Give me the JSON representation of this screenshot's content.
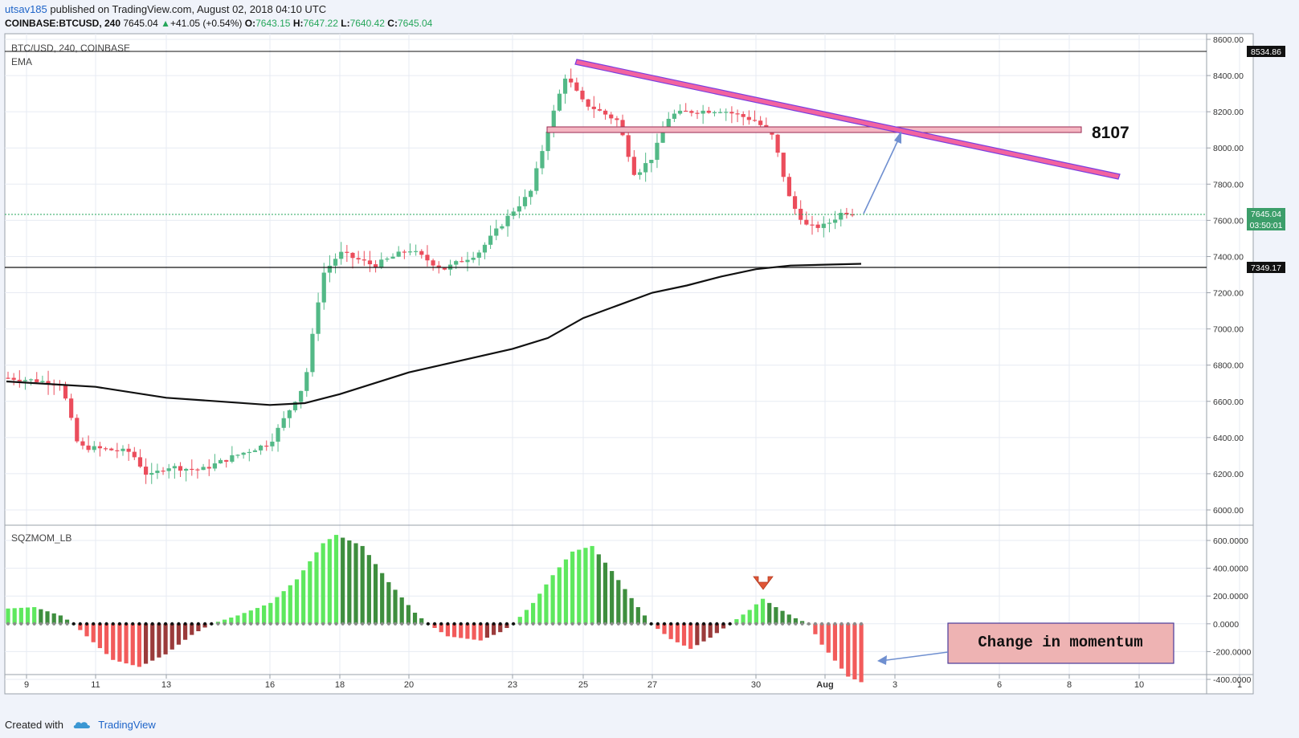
{
  "header": {
    "author": "utsav185",
    "published_text": "published on TradingView.com, August 02, 2018 04:10 UTC",
    "symbol_line": "COINBASE:BTCUSD, 240",
    "last": "7645.04",
    "change_arrow": "▲",
    "change": "+41.05 (+0.54%)",
    "o_label": "O:",
    "o": "7643.15",
    "h_label": "H:",
    "h": "7647.22",
    "l_label": "L:",
    "l": "7640.42",
    "c_label": "C:",
    "c": "7645.04"
  },
  "footer": {
    "created_with": "Created with",
    "brand": "TradingView"
  },
  "chart_data": [
    {
      "type": "candlestick",
      "title": "BTC/USD, 240, COINBASE",
      "indicator_label": "EMA",
      "ylim": [
        5950,
        8650
      ],
      "y_ticks": [
        "8600.00",
        "8400.00",
        "8200.00",
        "8000.00",
        "7800.00",
        "7600.00",
        "7400.00",
        "7200.00",
        "7000.00",
        "6800.00",
        "6600.00",
        "6400.00",
        "6200.00",
        "6000.00"
      ],
      "x_ticks": [
        "9",
        "11",
        "13",
        "16",
        "18",
        "20",
        "23",
        "25",
        "27",
        "30",
        "Aug",
        "3",
        "6",
        "8",
        "10",
        "1"
      ],
      "price_labels": {
        "resistance": "8534.86",
        "last": "7645.04",
        "countdown": "03:50:01",
        "support": "7349.17"
      },
      "annotation_level": "8107",
      "path_points": [
        [
          "9",
          6730
        ],
        [
          "10",
          6700
        ],
        [
          "10.5",
          6350
        ],
        [
          "11",
          6340
        ],
        [
          "12",
          6320
        ],
        [
          "12.5",
          6180
        ],
        [
          "13",
          6240
        ],
        [
          "14",
          6220
        ],
        [
          "15",
          6300
        ],
        [
          "16",
          6370
        ],
        [
          "17",
          6700
        ],
        [
          "17.5",
          7300
        ],
        [
          "18",
          7420
        ],
        [
          "19",
          7350
        ],
        [
          "20",
          7440
        ],
        [
          "21",
          7330
        ],
        [
          "22",
          7420
        ],
        [
          "23",
          7650
        ],
        [
          "23.5",
          7750
        ],
        [
          "24",
          8100
        ],
        [
          "24.5",
          8400
        ],
        [
          "25",
          8250
        ],
        [
          "26",
          8150
        ],
        [
          "26.5",
          7850
        ],
        [
          "27",
          7950
        ],
        [
          "27.5",
          8180
        ],
        [
          "28",
          8200
        ],
        [
          "29",
          8210
        ],
        [
          "30",
          8150
        ],
        [
          "30.5",
          8060
        ],
        [
          "31",
          7700
        ],
        [
          "31.5",
          7560
        ],
        [
          "Aug 1",
          7570
        ],
        [
          "Aug 1.5",
          7645
        ]
      ],
      "ema": [
        [
          "9",
          6710
        ],
        [
          "11",
          6680
        ],
        [
          "13",
          6620
        ],
        [
          "16",
          6580
        ],
        [
          "17",
          6590
        ],
        [
          "18",
          6640
        ],
        [
          "20",
          6760
        ],
        [
          "23",
          6890
        ],
        [
          "24",
          6950
        ],
        [
          "25",
          7060
        ],
        [
          "26",
          7130
        ],
        [
          "27",
          7200
        ],
        [
          "28",
          7240
        ],
        [
          "29",
          7290
        ],
        [
          "30",
          7330
        ],
        [
          "31",
          7350
        ],
        [
          "Aug 1",
          7360
        ]
      ]
    },
    {
      "type": "bar",
      "title": "SQZMOM_LB",
      "y_ticks": [
        "600.0000",
        "400.0000",
        "200.0000",
        "0.0000",
        "-200.0000",
        "-400.0000"
      ],
      "ylim": [
        -460,
        680
      ],
      "series_profile": [
        [
          0,
          110
        ],
        [
          4,
          120
        ],
        [
          8,
          60
        ],
        [
          10,
          0
        ],
        [
          12,
          -90
        ],
        [
          16,
          -260
        ],
        [
          20,
          -310
        ],
        [
          24,
          -220
        ],
        [
          28,
          -80
        ],
        [
          31,
          0
        ],
        [
          35,
          60
        ],
        [
          40,
          150
        ],
        [
          44,
          320
        ],
        [
          48,
          580
        ],
        [
          50,
          640
        ],
        [
          54,
          560
        ],
        [
          58,
          300
        ],
        [
          62,
          80
        ],
        [
          64,
          0
        ],
        [
          67,
          -90
        ],
        [
          72,
          -120
        ],
        [
          75,
          -60
        ],
        [
          77,
          0
        ],
        [
          80,
          150
        ],
        [
          83,
          350
        ],
        [
          86,
          520
        ],
        [
          89,
          560
        ],
        [
          92,
          380
        ],
        [
          96,
          120
        ],
        [
          98,
          0
        ],
        [
          101,
          -110
        ],
        [
          104,
          -180
        ],
        [
          107,
          -100
        ],
        [
          110,
          0
        ],
        [
          113,
          100
        ],
        [
          115,
          180
        ],
        [
          117,
          120
        ],
        [
          120,
          40
        ],
        [
          122,
          0
        ],
        [
          124,
          -150
        ],
        [
          128,
          -380
        ],
        [
          130,
          -420
        ]
      ],
      "annotation": "Change in momentum"
    }
  ]
}
